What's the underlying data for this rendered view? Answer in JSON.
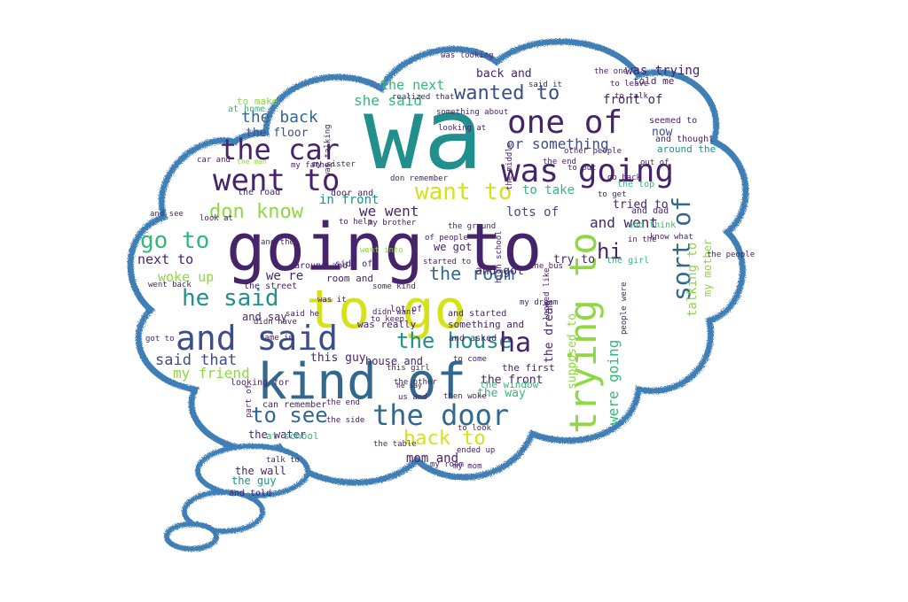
{
  "palette": {
    "outline": "#3f7fb5",
    "dark_purple": "#46246a",
    "indigo": "#3b4d8a",
    "blue": "#31688e",
    "teal": "#21908d",
    "green": "#35b779",
    "lime": "#8fd744",
    "yellow": "#d5e21a"
  },
  "words": [
    {
      "text": "wa",
      "color": "teal"
    },
    {
      "text": "going to",
      "color": "dark_purple"
    },
    {
      "text": "to go",
      "color": "yellow"
    },
    {
      "text": "kind of",
      "color": "blue"
    },
    {
      "text": "and said",
      "color": "indigo"
    },
    {
      "text": "was going",
      "color": "dark_purple"
    },
    {
      "text": "went to",
      "color": "dark_purple"
    },
    {
      "text": "the car",
      "color": "dark_purple"
    },
    {
      "text": "one of",
      "color": "dark_purple"
    },
    {
      "text": "trying to",
      "color": "lime"
    },
    {
      "text": "the door",
      "color": "blue"
    },
    {
      "text": "the house",
      "color": "teal"
    },
    {
      "text": "want to",
      "color": "yellow"
    },
    {
      "text": "don know",
      "color": "lime"
    },
    {
      "text": "wanted to",
      "color": "indigo"
    },
    {
      "text": "go to",
      "color": "green"
    },
    {
      "text": "he said",
      "color": "teal"
    },
    {
      "text": "sort of",
      "color": "blue"
    },
    {
      "text": "to see",
      "color": "blue"
    },
    {
      "text": "back to",
      "color": "yellow"
    },
    {
      "text": "the room",
      "color": "blue"
    },
    {
      "text": "ha",
      "color": "dark_purple"
    },
    {
      "text": "hi",
      "color": "dark_purple"
    },
    {
      "text": "the back",
      "color": "blue"
    },
    {
      "text": "said that",
      "color": "indigo"
    },
    {
      "text": "my friend",
      "color": "lime"
    },
    {
      "text": "we went",
      "color": "dark_purple"
    },
    {
      "text": "and went",
      "color": "dark_purple"
    },
    {
      "text": "were going",
      "color": "green"
    },
    {
      "text": "talking to",
      "color": "lime"
    },
    {
      "text": "or something",
      "color": "indigo"
    },
    {
      "text": "next to",
      "color": "dark_purple"
    },
    {
      "text": "woke up",
      "color": "lime"
    },
    {
      "text": "to take",
      "color": "green"
    },
    {
      "text": "in front",
      "color": "teal"
    },
    {
      "text": "lots of",
      "color": "indigo"
    },
    {
      "text": "the front",
      "color": "dark_purple"
    },
    {
      "text": "the way",
      "color": "green"
    },
    {
      "text": "mom and",
      "color": "dark_purple"
    },
    {
      "text": "she said",
      "color": "green"
    },
    {
      "text": "the next",
      "color": "green"
    },
    {
      "text": "front of",
      "color": "dark_purple"
    },
    {
      "text": "was trying",
      "color": "dark_purple"
    },
    {
      "text": "supposed to",
      "color": "lime"
    },
    {
      "text": "my mother",
      "color": "lime"
    },
    {
      "text": "the floor",
      "color": "indigo"
    },
    {
      "text": "the dream",
      "color": "dark_purple"
    },
    {
      "text": "we re",
      "color": "dark_purple"
    },
    {
      "text": "this guy",
      "color": "dark_purple"
    },
    {
      "text": "house and",
      "color": "dark_purple"
    },
    {
      "text": "and say",
      "color": "dark_purple"
    },
    {
      "text": "the water",
      "color": "dark_purple"
    },
    {
      "text": "the guy",
      "color": "teal"
    },
    {
      "text": "the wall",
      "color": "dark_purple"
    },
    {
      "text": "we got",
      "color": "dark_purple"
    },
    {
      "text": "and got",
      "color": "dark_purple"
    },
    {
      "text": "now",
      "color": "indigo"
    },
    {
      "text": "tried to",
      "color": "dark_purple"
    },
    {
      "text": "the street",
      "color": "dark_purple"
    },
    {
      "text": "room and",
      "color": "dark_purple"
    },
    {
      "text": "was really",
      "color": "dark_purple"
    },
    {
      "text": "something and",
      "color": "dark_purple"
    },
    {
      "text": "around and",
      "color": "dark_purple"
    },
    {
      "text": "side of",
      "color": "dark_purple"
    },
    {
      "text": "try to",
      "color": "dark_purple"
    },
    {
      "text": "seemed to",
      "color": "dark_purple"
    },
    {
      "text": "back and",
      "color": "dark_purple"
    },
    {
      "text": "told me",
      "color": "dark_purple"
    },
    {
      "text": "around the",
      "color": "teal"
    },
    {
      "text": "and thought",
      "color": "dark_purple"
    },
    {
      "text": "the top",
      "color": "green"
    },
    {
      "text": "the first",
      "color": "dark_purple"
    },
    {
      "text": "the window",
      "color": "green"
    },
    {
      "text": "at school",
      "color": "green"
    },
    {
      "text": "and told",
      "color": "dark_purple"
    },
    {
      "text": "lot of",
      "color": "dark_purple"
    },
    {
      "text": "and asked",
      "color": "dark_purple"
    },
    {
      "text": "and started",
      "color": "dark_purple"
    },
    {
      "text": "looking for",
      "color": "dark_purple"
    },
    {
      "text": "can remember",
      "color": "dark_purple"
    },
    {
      "text": "to make",
      "color": "lime"
    },
    {
      "text": "at home",
      "color": "green"
    },
    {
      "text": "the bus",
      "color": "dark_purple"
    },
    {
      "text": "the girl",
      "color": "green"
    },
    {
      "text": "the people",
      "color": "dark_purple"
    },
    {
      "text": "high school",
      "color": "dark_purple"
    },
    {
      "text": "the road",
      "color": "dark_purple"
    },
    {
      "text": "door and",
      "color": "dark_purple"
    },
    {
      "text": "my dream",
      "color": "dark_purple"
    },
    {
      "text": "looked like",
      "color": "dark_purple"
    },
    {
      "text": "people were",
      "color": "dark_purple"
    },
    {
      "text": "and dad",
      "color": "dark_purple"
    },
    {
      "text": "and think",
      "color": "green"
    },
    {
      "text": "know what",
      "color": "dark_purple"
    },
    {
      "text": "came in",
      "color": "dark_purple"
    },
    {
      "text": "some kind",
      "color": "dark_purple"
    },
    {
      "text": "part of",
      "color": "dark_purple"
    },
    {
      "text": "my room",
      "color": "dark_purple"
    },
    {
      "text": "ended up",
      "color": "dark_purple"
    },
    {
      "text": "the end",
      "color": "dark_purple"
    },
    {
      "text": "this girl",
      "color": "dark_purple"
    },
    {
      "text": "he say",
      "color": "dark_purple"
    },
    {
      "text": "us and",
      "color": "dark_purple"
    },
    {
      "text": "then woke",
      "color": "dark_purple"
    },
    {
      "text": "the man",
      "color": "lime"
    },
    {
      "text": "car and",
      "color": "dark_purple"
    },
    {
      "text": "and see",
      "color": "dark_purple"
    },
    {
      "text": "look at",
      "color": "dark_purple"
    },
    {
      "text": "went back",
      "color": "dark_purple"
    },
    {
      "text": "got to",
      "color": "dark_purple"
    },
    {
      "text": "was talking",
      "color": "dark_purple"
    },
    {
      "text": "realized that",
      "color": "dark_purple"
    },
    {
      "text": "was looking",
      "color": "dark_purple"
    },
    {
      "text": "the one",
      "color": "dark_purple"
    },
    {
      "text": "to leave",
      "color": "dark_purple"
    },
    {
      "text": "to talk",
      "color": "dark_purple"
    },
    {
      "text": "to put",
      "color": "dark_purple"
    },
    {
      "text": "other people",
      "color": "dark_purple"
    },
    {
      "text": "don remember",
      "color": "dark_purple"
    },
    {
      "text": "looking at",
      "color": "dark_purple"
    },
    {
      "text": "said it",
      "color": "dark_purple"
    },
    {
      "text": "the middle",
      "color": "dark_purple"
    },
    {
      "text": "of people",
      "color": "dark_purple"
    },
    {
      "text": "something about",
      "color": "dark_purple"
    },
    {
      "text": "my father",
      "color": "dark_purple"
    },
    {
      "text": "my sister",
      "color": "dark_purple"
    },
    {
      "text": "my brother",
      "color": "dark_purple"
    },
    {
      "text": "to help",
      "color": "dark_purple"
    },
    {
      "text": "the ground",
      "color": "dark_purple"
    },
    {
      "text": "started to",
      "color": "dark_purple"
    },
    {
      "text": "went into",
      "color": "lime"
    },
    {
      "text": "and then",
      "color": "dark_purple"
    },
    {
      "text": "said he",
      "color": "dark_purple"
    },
    {
      "text": "was it",
      "color": "dark_purple"
    },
    {
      "text": "didn want",
      "color": "dark_purple"
    },
    {
      "text": "didn have",
      "color": "dark_purple"
    },
    {
      "text": "to keep",
      "color": "dark_purple"
    },
    {
      "text": "to come",
      "color": "dark_purple"
    },
    {
      "text": "the other",
      "color": "dark_purple"
    },
    {
      "text": "the table",
      "color": "dark_purple"
    },
    {
      "text": "my mom",
      "color": "dark_purple"
    },
    {
      "text": "the side",
      "color": "dark_purple"
    },
    {
      "text": "talk to",
      "color": "dark_purple"
    },
    {
      "text": "to look",
      "color": "dark_purple"
    },
    {
      "text": "the end",
      "color": "dark_purple"
    },
    {
      "text": "to get",
      "color": "dark_purple"
    },
    {
      "text": "go back",
      "color": "dark_purple"
    },
    {
      "text": "in the",
      "color": "dark_purple"
    },
    {
      "text": "out of",
      "color": "dark_purple"
    },
    {
      "text": "to do",
      "color": "dark_purple"
    },
    {
      "text": "the other",
      "color": "dark_purple"
    }
  ]
}
